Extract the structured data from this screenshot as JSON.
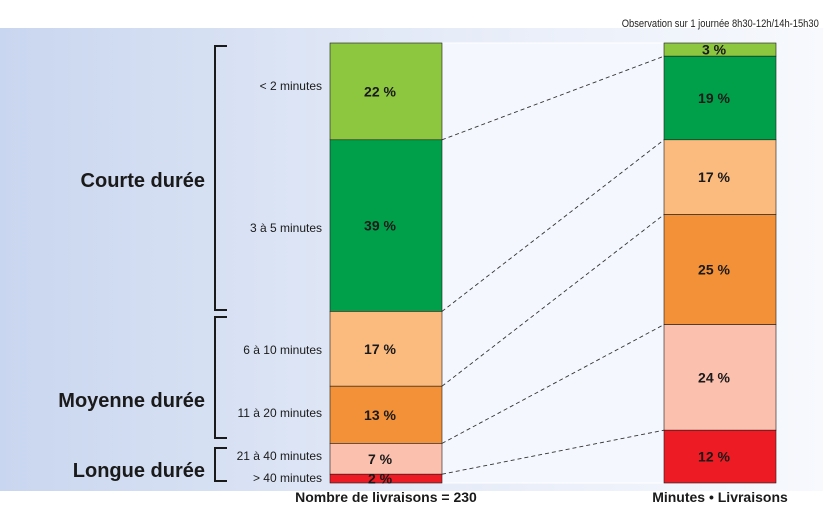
{
  "note": "Observation sur 1 journée 8h30-12h/14h-15h30",
  "chart_data": {
    "type": "bar",
    "categories": [
      "< 2 minutes",
      "3 à 5 minutes",
      "6 à 10 minutes",
      "11 à 20 minutes",
      "21 à 40 minutes",
      "> 40 minutes"
    ],
    "groups": [
      {
        "label": "Courte durée",
        "categories": [
          "< 2 minutes",
          "3 à 5 minutes"
        ]
      },
      {
        "label": "Moyenne durée",
        "categories": [
          "6 à 10 minutes",
          "11 à 20 minutes"
        ]
      },
      {
        "label": "Longue durée",
        "categories": [
          "21 à 40 minutes",
          "> 40 minutes"
        ]
      }
    ],
    "series": [
      {
        "name": "Nombre de livraisons = 230",
        "values": [
          22,
          39,
          17,
          13,
          7,
          2
        ],
        "labels": [
          "22 %",
          "39 %",
          "17 %",
          "13 %",
          "7 %",
          "2 %"
        ]
      },
      {
        "name": "Minutes • Livraisons",
        "values": [
          3,
          19,
          17,
          25,
          24,
          12
        ],
        "labels": [
          "3 %",
          "19 %",
          "17 %",
          "25 %",
          "24 %",
          "12 %"
        ]
      }
    ],
    "colors": [
      "#8dc63f",
      "#00a04b",
      "#fbbb7f",
      "#f39138",
      "#fcc1ae",
      "#ed1c24"
    ],
    "stacked": true,
    "percent": true
  }
}
